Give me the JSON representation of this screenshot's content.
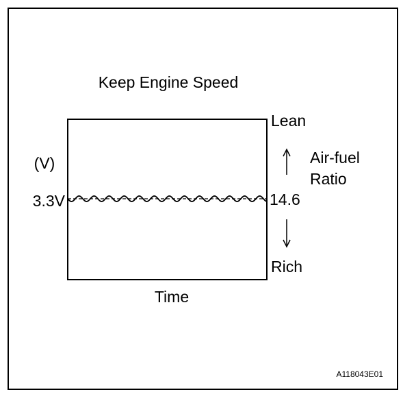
{
  "title": "Keep Engine Speed",
  "left_axis": {
    "unit": "(V)",
    "level_label": "3.3V"
  },
  "right_axis": {
    "top": "Lean",
    "title_lines": [
      "Air-fuel",
      "Ratio"
    ],
    "level_label": "14.6",
    "bottom": "Rich"
  },
  "x_axis": {
    "label": "Time"
  },
  "figure_id": "A118043E01"
}
